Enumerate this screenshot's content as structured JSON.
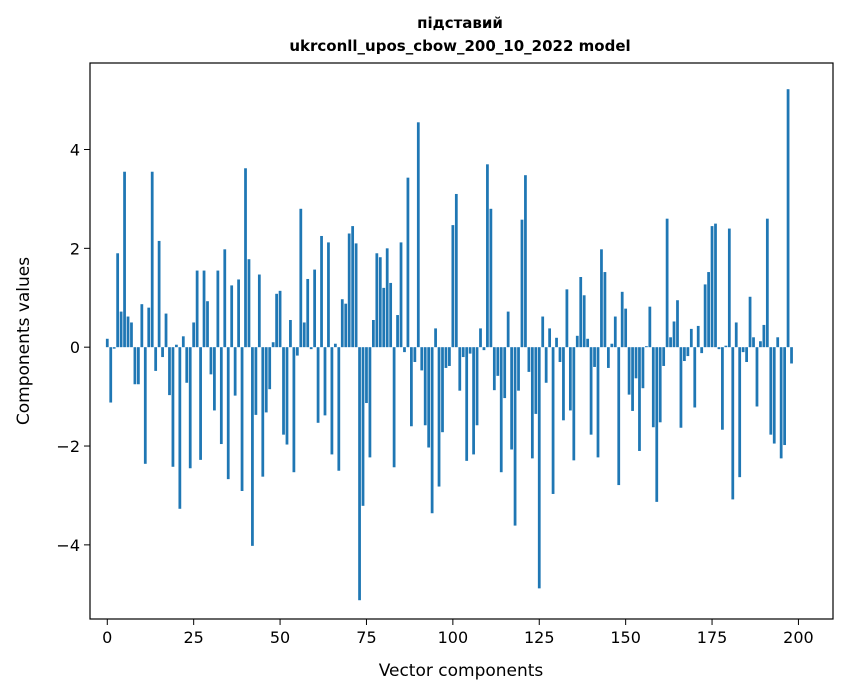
{
  "chart_data": {
    "type": "bar",
    "title_line1": "підставий",
    "title_line2": "ukrconll_upos_cbow_200_10_2022 model",
    "xlabel": "Vector components",
    "ylabel": "Components values",
    "xlim": [
      -5,
      210
    ],
    "ylim": [
      -5.5,
      5.75
    ],
    "xticks": [
      0,
      25,
      50,
      75,
      100,
      125,
      150,
      175,
      200
    ],
    "xtick_labels": [
      "0",
      "25",
      "50",
      "75",
      "100",
      "125",
      "150",
      "175",
      "200"
    ],
    "yticks": [
      -4,
      -2,
      0,
      2,
      4
    ],
    "ytick_labels": [
      "−4",
      "−2",
      "0",
      "2",
      "4"
    ],
    "bar_color": "#1f77b4",
    "grid": false,
    "values": [
      0.17,
      -1.12,
      -0.03,
      1.9,
      0.72,
      3.55,
      0.62,
      0.5,
      -0.75,
      -0.75,
      0.87,
      -2.36,
      0.8,
      3.55,
      -0.48,
      2.15,
      -0.2,
      0.68,
      -0.97,
      -2.42,
      0.05,
      -3.27,
      0.22,
      -0.72,
      -2.45,
      0.5,
      1.55,
      -2.28,
      1.55,
      0.93,
      -0.55,
      -1.28,
      1.55,
      -1.96,
      1.98,
      -2.67,
      1.25,
      -0.98,
      1.37,
      -2.91,
      3.62,
      1.78,
      -4.02,
      -1.37,
      1.47,
      -2.62,
      -1.32,
      -0.85,
      0.1,
      1.08,
      1.14,
      -1.77,
      -1.97,
      0.55,
      -2.53,
      -0.17,
      2.8,
      0.5,
      1.38,
      -0.04,
      1.57,
      -1.53,
      2.25,
      -1.38,
      2.12,
      -2.17,
      0.07,
      -2.5,
      0.97,
      0.88,
      2.3,
      2.45,
      2.1,
      -5.12,
      -3.21,
      -1.13,
      -2.23,
      0.55,
      1.9,
      1.82,
      1.2,
      2.0,
      1.3,
      -2.43,
      0.65,
      2.12,
      -0.1,
      3.43,
      -1.6,
      -0.3,
      4.55,
      -0.47,
      -1.58,
      -2.03,
      -3.36,
      0.38,
      -2.82,
      -1.72,
      -0.42,
      -0.38,
      2.47,
      3.1,
      -0.88,
      -0.2,
      -2.3,
      -0.13,
      -2.17,
      -1.58,
      0.38,
      -0.06,
      3.7,
      2.8,
      -0.87,
      -0.58,
      -2.53,
      -1.03,
      0.72,
      -2.07,
      -3.61,
      -0.88,
      2.58,
      3.48,
      -0.5,
      -2.25,
      -1.35,
      -4.88,
      0.62,
      -0.72,
      0.38,
      -2.97,
      0.19,
      -0.3,
      -1.48,
      1.17,
      -1.28,
      -2.29,
      0.23,
      1.42,
      1.05,
      0.17,
      -1.77,
      -0.4,
      -2.23,
      1.98,
      1.52,
      -0.42,
      0.07,
      0.62,
      -2.79,
      1.12,
      0.78,
      -0.96,
      -1.29,
      -0.63,
      -2.1,
      -0.83,
      0.02,
      0.82,
      -1.62,
      -3.13,
      -1.52,
      -0.38,
      2.6,
      0.2,
      0.52,
      0.95,
      -1.63,
      -0.28,
      -0.18,
      0.37,
      -1.22,
      0.43,
      -0.12,
      1.27,
      1.52,
      2.45,
      2.5,
      -0.04,
      -1.67,
      0.03,
      2.4,
      -3.08,
      0.5,
      -2.63,
      -0.1,
      -0.3,
      1.02,
      0.2,
      -1.2,
      0.12,
      0.45,
      2.6,
      -1.77,
      -1.95,
      0.2,
      -2.25,
      -1.98,
      5.22,
      -0.33
    ]
  }
}
